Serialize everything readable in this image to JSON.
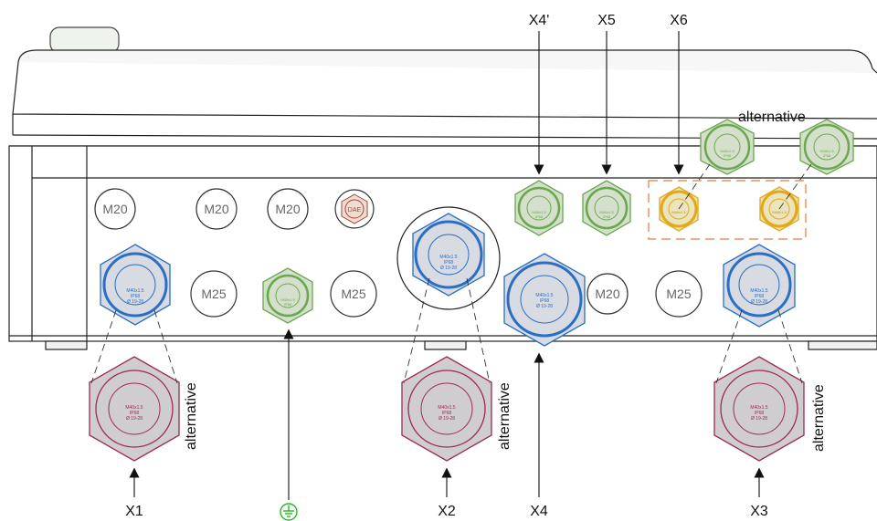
{
  "labels": {
    "x1": "X1",
    "x2": "X2",
    "x3": "X3",
    "x4": "X4",
    "x4p": "X4'",
    "x5": "X5",
    "x6": "X6",
    "alternative": "alternative"
  },
  "holes": {
    "m20": "M20",
    "m25": "M25",
    "dae": "DAE"
  },
  "gland_text": {
    "line1": "M40x1.5",
    "line2": "IP68",
    "line3": "Ø 19-28"
  },
  "colors": {
    "blue": "#2a6fc4",
    "blue_fill": "#c9c9cf",
    "green": "#6aa84f",
    "green_fill": "#cfdcc4",
    "yellow": "#e3a817",
    "yellow_fill": "#e6e0b8",
    "red": "#9c2a55",
    "red_fill": "#c8c6c8",
    "dash_box": "#e8965a",
    "earth": "#22bb22"
  },
  "icons": {
    "earth": "earth-ground-icon"
  }
}
